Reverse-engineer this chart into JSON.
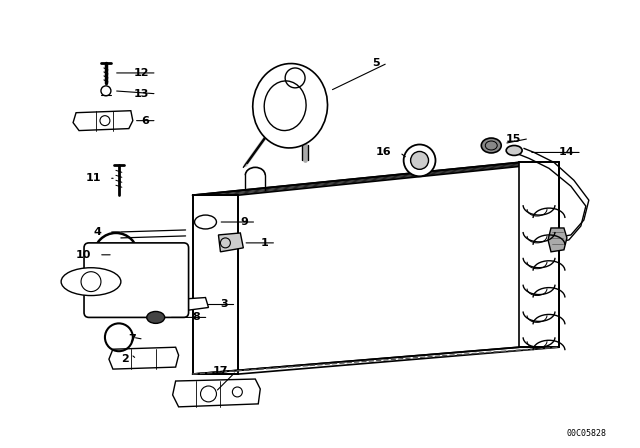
{
  "bg_color": "#ffffff",
  "line_color": "#000000",
  "fig_width": 6.4,
  "fig_height": 4.48,
  "dpi": 100,
  "part_number_text": "00C05828"
}
